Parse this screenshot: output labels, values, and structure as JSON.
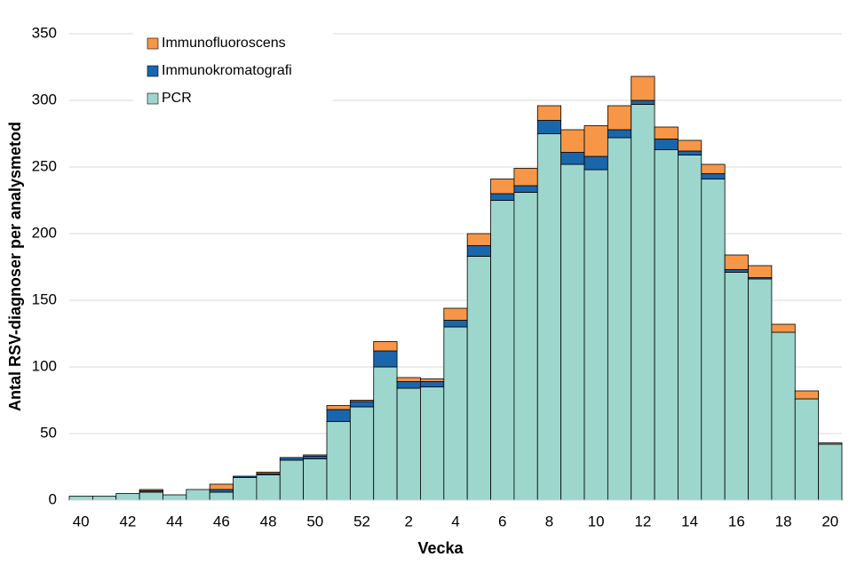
{
  "chart_data": {
    "type": "stacked-bar",
    "x_label": "Vecka",
    "y_label": "Antal RSV-diagnoser per analysmetod",
    "categories": [
      "40",
      null,
      "42",
      null,
      "44",
      null,
      "46",
      null,
      "48",
      null,
      "50",
      null,
      "52",
      null,
      "2",
      null,
      "4",
      null,
      "6",
      null,
      "8",
      null,
      "10",
      null,
      "12",
      null,
      "14",
      null,
      "16",
      null,
      "18",
      null,
      "20"
    ],
    "series": [
      {
        "name": "PCR",
        "color": "#9dd6cd",
        "values": [
          3,
          3,
          5,
          6,
          4,
          8,
          6,
          17,
          19,
          30,
          31,
          59,
          70,
          100,
          84,
          85,
          130,
          183,
          225,
          231,
          275,
          252,
          248,
          272,
          297,
          263,
          259,
          241,
          171,
          166,
          126,
          76,
          42
        ]
      },
      {
        "name": "Immunokromatografi",
        "color": "#1a66ac",
        "values": [
          0,
          0,
          0,
          1,
          0,
          0,
          2,
          1,
          1,
          2,
          2,
          9,
          4,
          12,
          5,
          4,
          5,
          8,
          5,
          5,
          10,
          9,
          10,
          6,
          3,
          8,
          3,
          4,
          2,
          1,
          0,
          0,
          0
        ]
      },
      {
        "name": "Immunofluoroscens",
        "color": "#f79646",
        "values": [
          0,
          0,
          0,
          1,
          0,
          0,
          4,
          0,
          1,
          0,
          1,
          3,
          1,
          7,
          3,
          2,
          9,
          9,
          11,
          13,
          11,
          17,
          23,
          18,
          18,
          9,
          8,
          7,
          11,
          9,
          6,
          6,
          1
        ]
      }
    ],
    "ylim": [
      0,
      350
    ],
    "yticks": [
      0,
      50,
      100,
      150,
      200,
      250,
      300,
      350
    ],
    "grid": true,
    "legend": "upper-left"
  }
}
